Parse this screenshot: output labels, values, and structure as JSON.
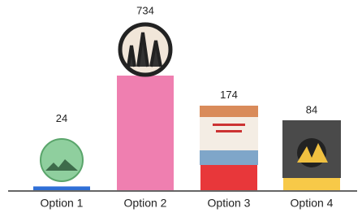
{
  "chart_data": {
    "type": "bar",
    "categories": [
      "Option 1",
      "Option 2",
      "Option 3",
      "Option 4"
    ],
    "values": [
      24,
      734,
      174,
      84
    ],
    "colors": [
      "#2f6fd6",
      "#ef7fb0",
      "#e8373a",
      "#f7c948"
    ]
  }
}
